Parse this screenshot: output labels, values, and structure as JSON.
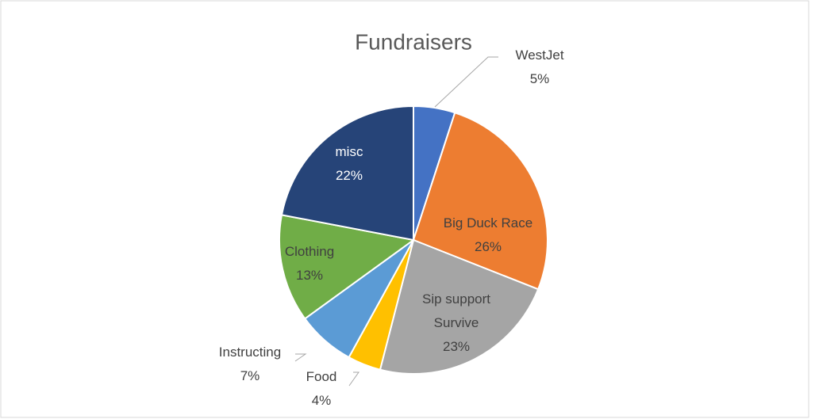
{
  "chart_data": {
    "type": "pie",
    "title": "Fundraisers",
    "categories": [
      "WestJet",
      "Big Duck Race",
      "Sip support Survive",
      "Food",
      "Instructing",
      "Clothing",
      "misc"
    ],
    "values": [
      5,
      26,
      23,
      4,
      7,
      13,
      22
    ],
    "value_labels": [
      "5%",
      "26%",
      "23%",
      "4%",
      "7%",
      "13%",
      "22%"
    ],
    "colors": [
      "#4472c4",
      "#ed7d31",
      "#a5a5a5",
      "#ffc000",
      "#5b9bd5",
      "#70ad47",
      "#264478"
    ]
  }
}
